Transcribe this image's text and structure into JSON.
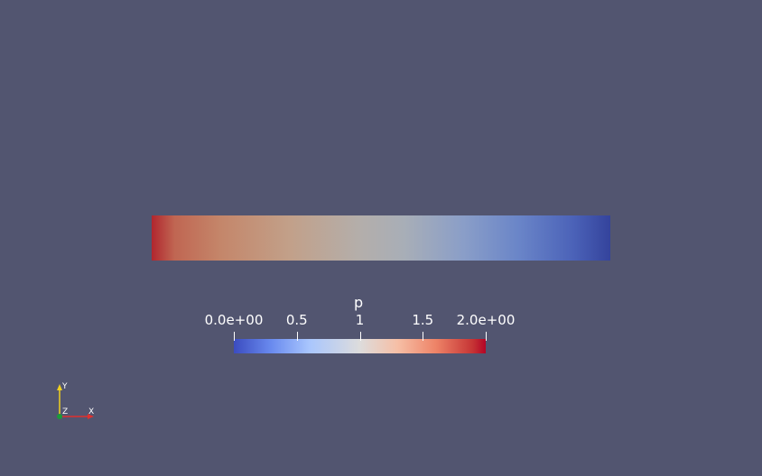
{
  "scalar_bar": {
    "title": "p",
    "ticks": [
      {
        "label": "0.0e+00",
        "value": 0.0
      },
      {
        "label": "0.5",
        "value": 0.5
      },
      {
        "label": "1",
        "value": 1.0
      },
      {
        "label": "1.5",
        "value": 1.5
      },
      {
        "label": "2.0e+00",
        "value": 2.0
      }
    ],
    "range": [
      0.0,
      2.0
    ],
    "colormap": "coolwarm",
    "low_color": "#3b4cc0",
    "mid_color": "#dddcdc",
    "high_color": "#b40426"
  },
  "render_view": {
    "background_color": "#525570"
  },
  "orientation_axes": {
    "x_label": "X",
    "y_label": "Y",
    "z_label": "Z",
    "x_color": "#e0302d",
    "y_color": "#f0d020",
    "z_color": "#1a9a3a"
  }
}
